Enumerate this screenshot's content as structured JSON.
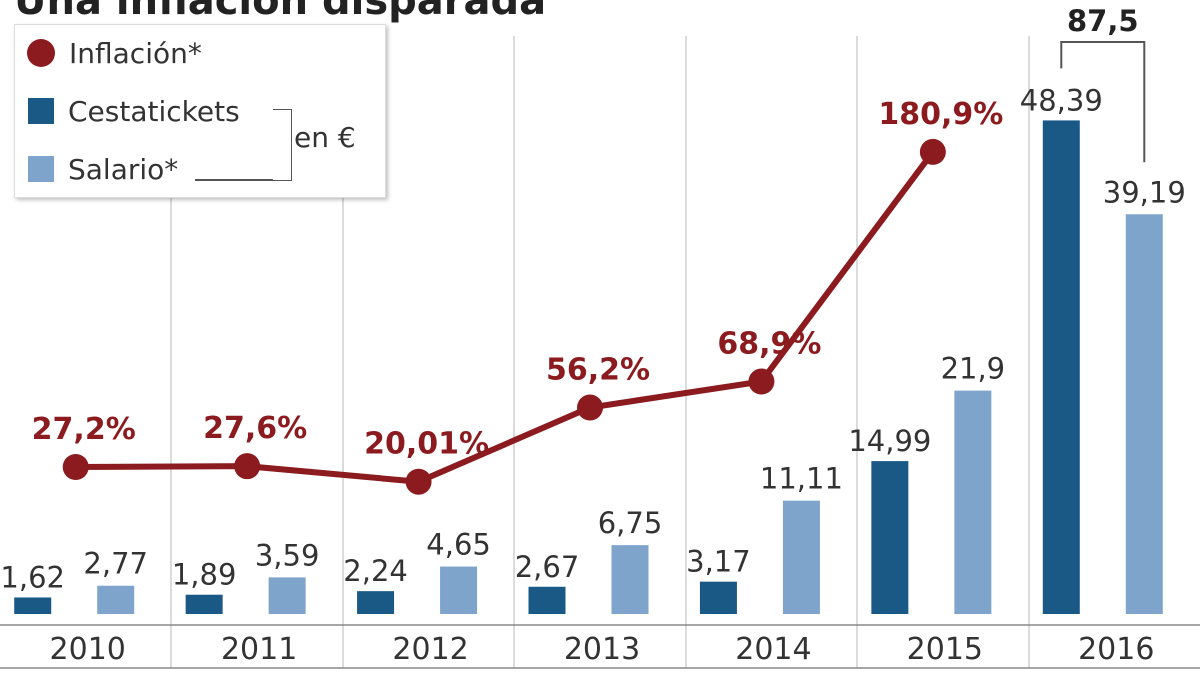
{
  "title": "Una inflación disparada",
  "legend": {
    "inflation": "Inflación*",
    "cestatickets": "Cestatickets",
    "salario": "Salario*",
    "unit": "en €"
  },
  "colors": {
    "inflation": "#8b1b1f",
    "cestatickets": "#1a5886",
    "salario": "#7ea4cc",
    "text": "#333333",
    "grid": "#cfcfcf"
  },
  "chart_data": {
    "type": "bar",
    "categories": [
      "2010",
      "2011",
      "2012",
      "2013",
      "2014",
      "2015",
      "2016"
    ],
    "series": [
      {
        "name": "Cestatickets",
        "unit": "€",
        "values": [
          1.62,
          1.89,
          2.24,
          2.67,
          3.17,
          14.99,
          48.39
        ],
        "labels": [
          "1,62",
          "1,89",
          "2,24",
          "2,67",
          "3,17",
          "14,99",
          "48,39"
        ]
      },
      {
        "name": "Salario*",
        "unit": "€",
        "values": [
          2.77,
          3.59,
          4.65,
          6.75,
          11.11,
          21.9,
          39.19
        ],
        "labels": [
          "2,77",
          "3,59",
          "4,65",
          "6,75",
          "11,11",
          "21,9",
          "39,19"
        ]
      }
    ],
    "line_series": {
      "name": "Inflación*",
      "type": "line",
      "unit": "%",
      "x": [
        "2010",
        "2011",
        "2012",
        "2013",
        "2014",
        "2015"
      ],
      "values": [
        27.2,
        27.6,
        20.01,
        56.2,
        68.9,
        180.9
      ],
      "labels": [
        "27,2%",
        "27,6%",
        "20,01%",
        "56,2%",
        "68,9%",
        "180,9%"
      ]
    },
    "annotation": {
      "category": "2016",
      "text": "87,5"
    },
    "legend_position": "top-left"
  }
}
